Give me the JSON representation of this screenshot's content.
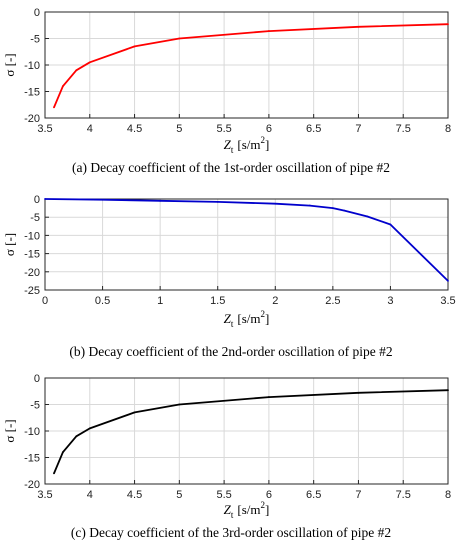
{
  "chart_data": [
    {
      "type": "line",
      "caption": "(a) Decay coefficient of the 1st-order oscillation of pipe #2",
      "ylabel": "σ [-]",
      "xlabel": "Z",
      "xlabel_sub": "t",
      "xlabel_unit": "[s/m",
      "xlabel_sup": "2",
      "xlabel_close": "]",
      "xlim": [
        3.5,
        8
      ],
      "ylim": [
        -20,
        0
      ],
      "xticks": [
        "3.5",
        "4",
        "4.5",
        "5",
        "5.5",
        "6",
        "6.5",
        "7",
        "7.5",
        "8"
      ],
      "yticks": [
        "0",
        "-5",
        "-10",
        "-15",
        "-20"
      ],
      "grid": true,
      "color": "#ff0000",
      "series": [
        {
          "x": [
            3.6,
            3.7,
            3.85,
            4,
            4.5,
            5,
            6,
            7,
            8
          ],
          "y": [
            -18,
            -14,
            -11,
            -9.5,
            -6.5,
            -5,
            -3.6,
            -2.8,
            -2.3
          ]
        }
      ]
    },
    {
      "type": "line",
      "caption": "(b) Decay coefficient of the 2nd-order oscillation of pipe #2",
      "ylabel": "σ [-]",
      "xlabel": "Z",
      "xlabel_sub": "t",
      "xlabel_unit": "[s/m",
      "xlabel_sup": "2",
      "xlabel_close": "]",
      "xlim": [
        0,
        3.5
      ],
      "ylim": [
        -25,
        0
      ],
      "xticks": [
        "0",
        "0.5",
        "1",
        "1.5",
        "2",
        "2.5",
        "3",
        "3.5"
      ],
      "yticks": [
        "0",
        "-5",
        "-10",
        "-15",
        "-20",
        "-25"
      ],
      "grid": true,
      "color": "#0000cc",
      "series": [
        {
          "x": [
            0,
            0.5,
            1,
            1.5,
            2,
            2.3,
            2.5,
            2.6,
            2.8,
            3,
            3.5
          ],
          "y": [
            0,
            -0.2,
            -0.5,
            -0.8,
            -1.3,
            -1.8,
            -2.5,
            -3.2,
            -4.8,
            -7,
            -22.5
          ]
        }
      ]
    },
    {
      "type": "line",
      "caption": "(c) Decay coefficient of the 3rd-order oscillation of pipe #2",
      "ylabel": "σ [-]",
      "xlabel": "Z",
      "xlabel_sub": "t",
      "xlabel_unit": "[s/m",
      "xlabel_sup": "2",
      "xlabel_close": "]",
      "xlim": [
        3.5,
        8
      ],
      "ylim": [
        -20,
        0
      ],
      "xticks": [
        "3.5",
        "4",
        "4.5",
        "5",
        "5.5",
        "6",
        "6.5",
        "7",
        "7.5",
        "8"
      ],
      "yticks": [
        "0",
        "-5",
        "-10",
        "-15",
        "-20"
      ],
      "grid": true,
      "color": "#000000",
      "series": [
        {
          "x": [
            3.6,
            3.7,
            3.85,
            4,
            4.5,
            5,
            6,
            7,
            8
          ],
          "y": [
            -18,
            -14,
            -11,
            -9.5,
            -6.5,
            -5,
            -3.6,
            -2.8,
            -2.3
          ]
        }
      ]
    }
  ]
}
